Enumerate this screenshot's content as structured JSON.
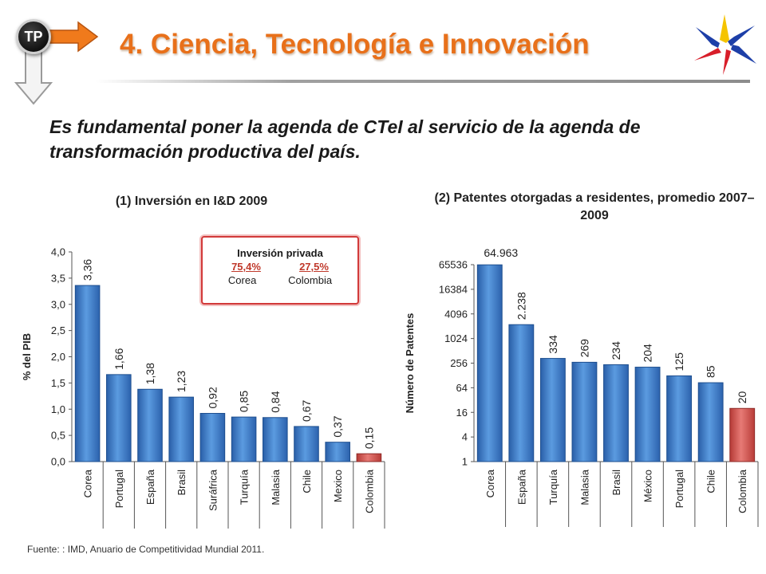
{
  "badge": {
    "label": "TP"
  },
  "title": "4. Ciencia, Tecnología e Innovación",
  "subtitle": "Es fundamental poner la agenda de CTeI al servicio de la agenda de transformación productiva del país.",
  "footer": "Fuente: : IMD, Anuario de Competitividad Mundial 2011.",
  "callout": {
    "header": "Inversión privada",
    "items": [
      {
        "pct": "75,4%",
        "country": "Corea"
      },
      {
        "pct": "27,5%",
        "country": "Colombia"
      }
    ]
  },
  "colors": {
    "accent": "#e8701a",
    "bar_blue": "#3a78c9",
    "bar_red": "#d9534f",
    "callout_border": "#d23a3a"
  },
  "chart_data": [
    {
      "type": "bar",
      "title": "(1) Inversión en I&D 2009",
      "ylabel": "% del PIB",
      "ylim": [
        0,
        4.0
      ],
      "yticks": [
        "0,0",
        "0,5",
        "1,0",
        "1,5",
        "2,0",
        "2,5",
        "3,0",
        "3,5",
        "4,0"
      ],
      "categories": [
        "Corea",
        "Portugal",
        "España",
        "Brasil",
        "Suráfrica",
        "Turquía",
        "Malasia",
        "Chile",
        "Mexico",
        "Colombia"
      ],
      "values": [
        3.36,
        1.66,
        1.38,
        1.23,
        0.92,
        0.85,
        0.84,
        0.67,
        0.37,
        0.15
      ],
      "value_labels": [
        "3,36",
        "1,66",
        "1,38",
        "1,23",
        "0,92",
        "0,85",
        "0,84",
        "0,67",
        "0,37",
        "0,15"
      ],
      "highlight": "Colombia",
      "grid": false
    },
    {
      "type": "bar",
      "title": "(2) Patentes otorgadas a residentes, promedio 2007–2009",
      "ylabel": "Número de Patentes",
      "yscale": "log",
      "ylim": [
        1,
        65536
      ],
      "yticks": [
        "1",
        "4",
        "16",
        "64",
        "256",
        "1024",
        "4096",
        "16384",
        "65536"
      ],
      "categories": [
        "Corea",
        "España",
        "Turquía",
        "Malasia",
        "Brasil",
        "México",
        "Portugal",
        "Chile",
        "Colombia"
      ],
      "values": [
        64963,
        2238,
        334,
        269,
        234,
        204,
        125,
        85,
        20
      ],
      "value_labels": [
        "64.963",
        "2.238",
        "334",
        "269",
        "234",
        "204",
        "125",
        "85",
        "20"
      ],
      "highlight": "Colombia",
      "grid": false
    }
  ]
}
